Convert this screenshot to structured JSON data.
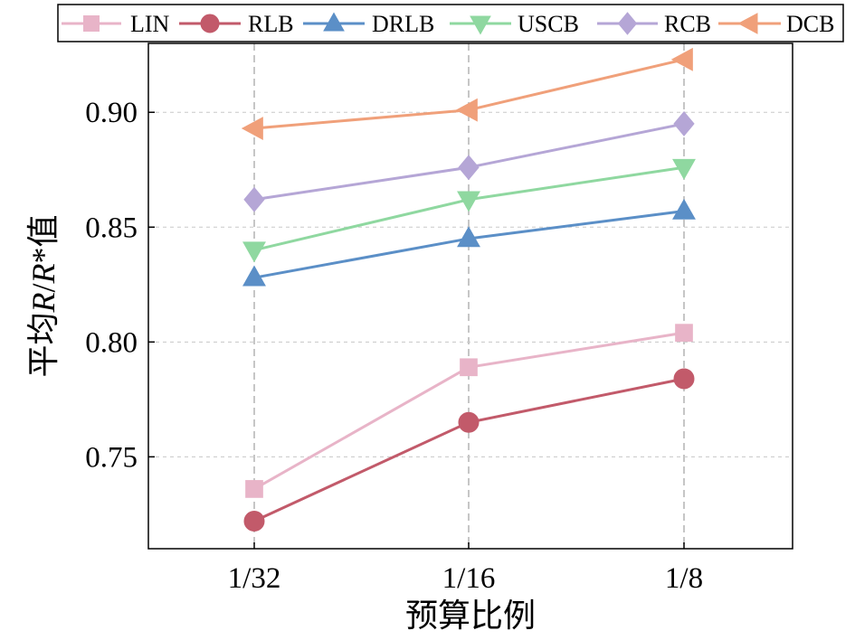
{
  "chart_data": {
    "type": "line",
    "xlabel": "预算比例",
    "ylabel_parts": [
      "平均",
      "R",
      "/",
      "R",
      "*值"
    ],
    "categories": [
      "1/32",
      "1/16",
      "1/8"
    ],
    "ylim": [
      0.71,
      0.93
    ],
    "yticks": [
      0.75,
      0.8,
      0.85,
      0.9
    ],
    "ytick_labels": [
      "0.75",
      "0.80",
      "0.85",
      "0.90"
    ],
    "grid": true,
    "legend_position": "top",
    "series": [
      {
        "name": "LIN",
        "marker": "square",
        "color": "#e8b4c8",
        "values": [
          0.736,
          0.789,
          0.804
        ]
      },
      {
        "name": "RLB",
        "marker": "circle",
        "color": "#c25a6a",
        "values": [
          0.722,
          0.765,
          0.784
        ]
      },
      {
        "name": "DRLB",
        "marker": "triangle-up",
        "color": "#5b8fc7",
        "values": [
          0.828,
          0.845,
          0.857
        ]
      },
      {
        "name": "USCB",
        "marker": "triangle-down",
        "color": "#8fd8a0",
        "values": [
          0.84,
          0.862,
          0.876
        ]
      },
      {
        "name": "RCB",
        "marker": "diamond",
        "color": "#b5a6d6",
        "values": [
          0.862,
          0.876,
          0.895
        ]
      },
      {
        "name": "DCB",
        "marker": "triangle-left",
        "color": "#f0a07a",
        "values": [
          0.893,
          0.901,
          0.923
        ]
      }
    ]
  }
}
